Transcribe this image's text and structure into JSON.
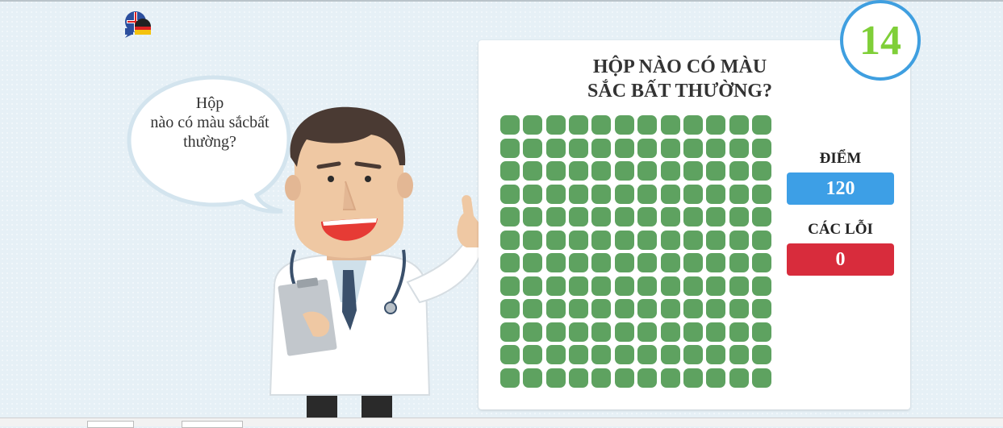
{
  "speech_bubble": {
    "line1": "Hộp",
    "line2": "nào có màu sắcbất",
    "line3": "thường?"
  },
  "game": {
    "question_line1": "HỘP NÀO CÓ MÀU",
    "question_line2": "SẮC BẤT THƯỜNG?",
    "timer": "14",
    "grid_rows": 12,
    "grid_cols": 12,
    "box_color": "#5ea260"
  },
  "stats": {
    "score_label": "ĐIỂM",
    "score_value": "120",
    "errors_label": "CÁC LỖI",
    "errors_value": "0"
  },
  "colors": {
    "timer_ring": "#3f9fe0",
    "timer_text": "#7fcf38",
    "score_bg": "#3d9fe6",
    "errors_bg": "#d82c3c"
  },
  "icons": {
    "language": "language-flags-icon"
  }
}
